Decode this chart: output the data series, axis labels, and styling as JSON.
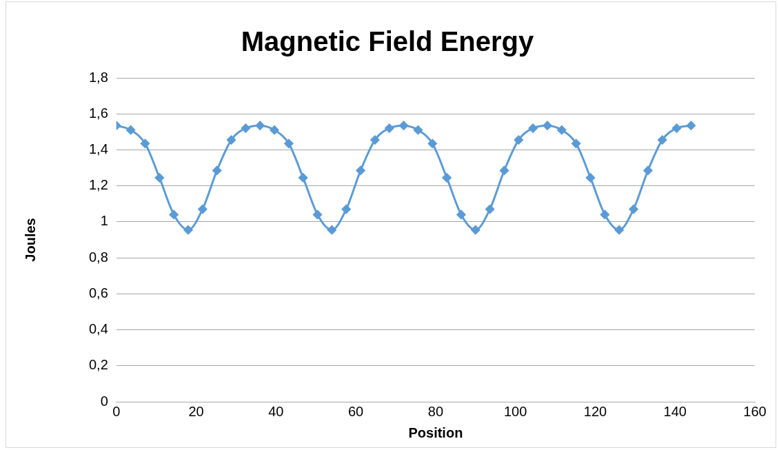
{
  "chart_data": {
    "type": "line",
    "title": "Magnetic Field Energy",
    "xlabel": "Position",
    "ylabel": "Joules",
    "x": [
      0,
      3.6,
      7.2,
      10.8,
      14.4,
      18,
      21.6,
      25.2,
      28.8,
      32.4,
      36,
      39.6,
      43.2,
      46.8,
      50.4,
      54,
      57.6,
      61.2,
      64.8,
      68.4,
      72,
      75.6,
      79.2,
      82.8,
      86.4,
      90,
      93.6,
      97.2,
      100.8,
      104.4,
      108,
      111.6,
      115.2,
      118.8,
      122.4,
      126,
      129.6,
      133.2,
      136.8,
      140.4,
      144
    ],
    "series": [
      {
        "color": "#5b9bd5",
        "values": [
          1.535,
          1.51,
          1.435,
          1.245,
          1.04,
          0.955,
          1.07,
          1.285,
          1.455,
          1.52,
          1.535,
          1.51,
          1.435,
          1.245,
          1.04,
          0.955,
          1.07,
          1.285,
          1.455,
          1.52,
          1.535,
          1.51,
          1.435,
          1.245,
          1.04,
          0.955,
          1.07,
          1.285,
          1.455,
          1.52,
          1.535,
          1.51,
          1.435,
          1.245,
          1.04,
          0.955,
          1.07,
          1.285,
          1.455,
          1.52,
          1.535
        ]
      }
    ],
    "xlim": [
      0,
      160
    ],
    "xticks": [
      0,
      20,
      40,
      60,
      80,
      100,
      120,
      140,
      160
    ],
    "ylim": [
      0,
      1.8
    ],
    "yticks": [
      0,
      {
        "value": 0.2,
        "label": "0,2"
      },
      {
        "value": 0.4,
        "label": "0,4"
      },
      {
        "value": 0.6,
        "label": "0,6"
      },
      {
        "value": 0.8,
        "label": "0,8"
      },
      1,
      {
        "value": 1.2,
        "label": "1,2"
      },
      {
        "value": 1.4,
        "label": "1,4"
      },
      {
        "value": 1.6,
        "label": "1,6"
      },
      {
        "value": 1.8,
        "label": "1,8"
      }
    ],
    "grid": "y",
    "legend": false,
    "marker": "diamond",
    "line_style": "solid"
  }
}
